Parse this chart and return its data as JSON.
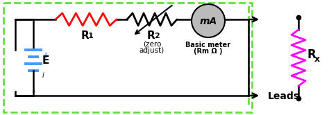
{
  "bg_color": "#ffffff",
  "border_color": "#66dd44",
  "wire_color": "#000000",
  "R1_color": "#ff0000",
  "R2_color": "#000000",
  "Rx_color": "#ff00ff",
  "battery_color": "#4499ff",
  "meter_color": "#bbbbbb",
  "label_R1": "R",
  "label_R1_sub": "1",
  "label_R2": "R",
  "label_R2_sub": "2",
  "label_R2_note1": "(zero",
  "label_R2_note2": "adjust)",
  "label_E": "E",
  "label_plus": "+",
  "label_mA": "mA",
  "label_meter1": "Basic meter",
  "label_meter2": "(R",
  "label_meter2_sub": "m",
  "label_meter2_end": " Ω )",
  "label_Rx": "R",
  "label_Rx_sub": "x",
  "label_leads": "Leads",
  "figsize": [
    4.74,
    1.66
  ],
  "dpi": 100
}
